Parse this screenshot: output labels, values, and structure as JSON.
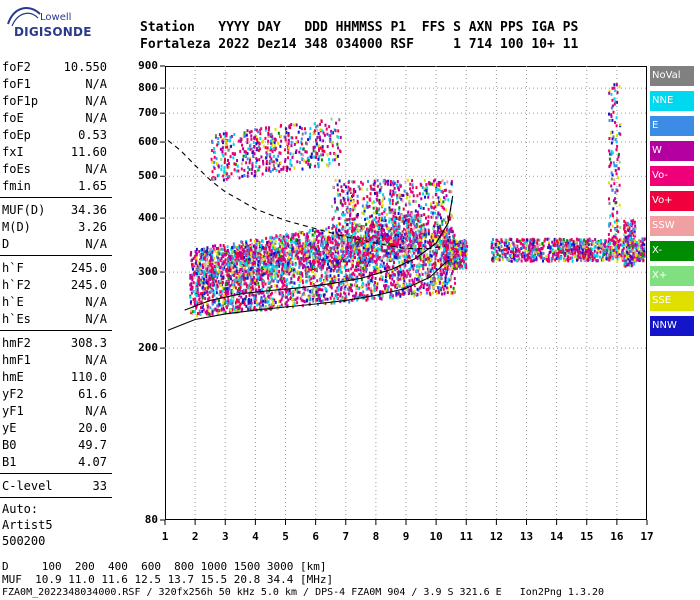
{
  "logo": {
    "line1": "Lowell",
    "line2": "DIGISONDE"
  },
  "header": {
    "line1": "Station   YYYY DAY   DDD HHMMSS P1  FFS S AXN PPS IGA PS",
    "line2": "Fortaleza 2022 Dez14 348 034000 RSF     1 714 100 10+ 11"
  },
  "params": {
    "group1": [
      {
        "k": "foF2",
        "v": "10.550"
      },
      {
        "k": "foF1",
        "v": "N/A"
      },
      {
        "k": "foF1p",
        "v": "N/A"
      },
      {
        "k": "foE",
        "v": "N/A"
      },
      {
        "k": "foEp",
        "v": "0.53"
      },
      {
        "k": "fxI",
        "v": "11.60"
      },
      {
        "k": "foEs",
        "v": "N/A"
      },
      {
        "k": "fmin",
        "v": "1.65"
      }
    ],
    "group2": [
      {
        "k": "MUF(D)",
        "v": "34.36"
      },
      {
        "k": "M(D)",
        "v": "3.26"
      },
      {
        "k": "D",
        "v": "N/A"
      }
    ],
    "group3": [
      {
        "k": "h`F",
        "v": "245.0"
      },
      {
        "k": "h`F2",
        "v": "245.0"
      },
      {
        "k": "h`E",
        "v": "N/A"
      },
      {
        "k": "h`Es",
        "v": "N/A"
      }
    ],
    "group4": [
      {
        "k": "hmF2",
        "v": "308.3"
      },
      {
        "k": "hmF1",
        "v": "N/A"
      },
      {
        "k": "hmE",
        "v": "110.0"
      },
      {
        "k": "yF2",
        "v": "61.6"
      },
      {
        "k": "yF1",
        "v": "N/A"
      },
      {
        "k": "yE",
        "v": "20.0"
      },
      {
        "k": "B0",
        "v": "49.7"
      },
      {
        "k": "B1",
        "v": "4.07"
      }
    ],
    "group5": [
      {
        "k": "C-level",
        "v": "33"
      }
    ],
    "auto": [
      "Auto:",
      "Artist5",
      "500200"
    ]
  },
  "legend": [
    {
      "label": "NoVal",
      "color": "#808080"
    },
    {
      "label": "NNE",
      "color": "#00d8f0"
    },
    {
      "label": "E",
      "color": "#3c8ce6"
    },
    {
      "label": "W",
      "color": "#b400a0"
    },
    {
      "label": "Vo-",
      "color": "#f00078"
    },
    {
      "label": "Vo+",
      "color": "#f0003c"
    },
    {
      "label": "SSW",
      "color": "#f0a0a0"
    },
    {
      "label": "X-",
      "color": "#008c00"
    },
    {
      "label": "X+",
      "color": "#80e080"
    },
    {
      "label": "SSE",
      "color": "#e0e000"
    },
    {
      "label": "NNW",
      "color": "#1414c8"
    }
  ],
  "chart_data": {
    "type": "scatter",
    "xlabel": "",
    "ylabel": "",
    "xlim": [
      1,
      17
    ],
    "ylim": [
      80,
      900
    ],
    "xticks": [
      "1",
      "2",
      "3",
      "4",
      "5",
      "6",
      "7",
      "8",
      "9",
      "10",
      "11",
      "12",
      "13",
      "14",
      "15",
      "16",
      "17"
    ],
    "yticks": [
      "80",
      "200",
      "300",
      "400",
      "500",
      "600",
      "700",
      "800",
      "900"
    ],
    "y_scale": "log",
    "grid": "dotted",
    "legend_position": "right",
    "series": [
      {
        "name": "O-trace (h'F)",
        "style": "solid",
        "x": [
          1.65,
          2.5,
          3.5,
          4.5,
          5.5,
          6.5,
          7.5,
          8.5,
          9.3,
          10.0,
          10.4,
          10.55
        ],
        "y": [
          245,
          258,
          267,
          272,
          276,
          282,
          290,
          304,
          322,
          350,
          390,
          450
        ]
      },
      {
        "name": "Lower solid trace",
        "style": "solid",
        "x": [
          1.1,
          2.0,
          3.0,
          4.0,
          5.0,
          6.0,
          7.0,
          8.0,
          9.0,
          9.8,
          10.4
        ],
        "y": [
          220,
          233,
          240,
          245,
          249,
          253,
          258,
          265,
          275,
          292,
          320
        ]
      },
      {
        "name": "Upper dashed trace",
        "style": "dashed",
        "x": [
          1.1,
          1.5,
          2.0,
          2.5,
          3.0,
          3.5,
          4.0,
          5.0,
          6.0,
          7.0,
          8.0,
          9.0,
          9.8,
          10.3
        ],
        "y": [
          605,
          575,
          530,
          490,
          460,
          440,
          420,
          395,
          378,
          362,
          350,
          340,
          340,
          345
        ]
      }
    ]
  },
  "footer": {
    "line1": "D     100  200  400  600  800 1000 1500 3000 [km]",
    "line2": "MUF  10.9 11.0 11.6 12.5 13.7 15.5 20.8 34.4 [MHz]",
    "line3": "FZA0M_2022348034000.RSF / 320fx256h 50 kHz 5.0 km / DPS-4 FZA0M 904 / 3.9 S 321.6 E   Ion2Png 1.3.20"
  }
}
